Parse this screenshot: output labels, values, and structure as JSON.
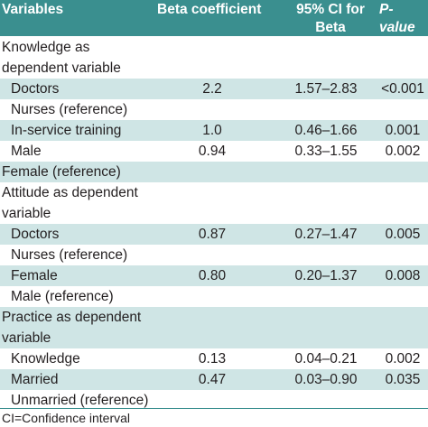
{
  "header": {
    "variables": "Variables",
    "beta": "Beta coefficient",
    "ci_line1": "95% CI for",
    "ci_line2": "Beta",
    "p": "P-value"
  },
  "rows": [
    {
      "label": "Knowledge as",
      "indent": 2,
      "beta": "",
      "ci": "",
      "p": "",
      "shade": false
    },
    {
      "label": "dependent variable",
      "indent": 2,
      "beta": "",
      "ci": "",
      "p": "",
      "shade": false
    },
    {
      "label": "Doctors",
      "indent": 12,
      "beta": "2.2",
      "ci": "1.57–2.83",
      "p": "<0.001",
      "shade": true
    },
    {
      "label": "Nurses (reference)",
      "indent": 12,
      "beta": "",
      "ci": "",
      "p": "",
      "shade": false
    },
    {
      "label": "In-service training",
      "indent": 12,
      "beta": "1.0",
      "ci": "0.46–1.66",
      "p": "0.001",
      "shade": true
    },
    {
      "label": "Male",
      "indent": 12,
      "beta": "0.94",
      "ci": "0.33–1.55",
      "p": "0.002",
      "shade": false
    },
    {
      "label": "Female (reference)",
      "indent": 2,
      "beta": "",
      "ci": "",
      "p": "",
      "shade": true
    },
    {
      "label": "Attitude as dependent",
      "indent": 2,
      "beta": "",
      "ci": "",
      "p": "",
      "shade": false
    },
    {
      "label": "variable",
      "indent": 2,
      "beta": "",
      "ci": "",
      "p": "",
      "shade": false
    },
    {
      "label": "Doctors",
      "indent": 12,
      "beta": "0.87",
      "ci": "0.27–1.47",
      "p": "0.005",
      "shade": true
    },
    {
      "label": "Nurses (reference)",
      "indent": 12,
      "beta": "",
      "ci": "",
      "p": "",
      "shade": false
    },
    {
      "label": "Female",
      "indent": 12,
      "beta": "0.80",
      "ci": "0.20–1.37",
      "p": "0.008",
      "shade": true
    },
    {
      "label": "Male (reference)",
      "indent": 12,
      "beta": "",
      "ci": "",
      "p": "",
      "shade": false
    },
    {
      "label": "Practice as dependent",
      "indent": 2,
      "beta": "",
      "ci": "",
      "p": "",
      "shade": true
    },
    {
      "label": "variable",
      "indent": 2,
      "beta": "",
      "ci": "",
      "p": "",
      "shade": true
    },
    {
      "label": "Knowledge",
      "indent": 12,
      "beta": "0.13",
      "ci": "0.04–0.21",
      "p": "0.002",
      "shade": false
    },
    {
      "label": "Married",
      "indent": 12,
      "beta": "0.47",
      "ci": "0.03–0.90",
      "p": "0.035",
      "shade": true
    },
    {
      "label": "Unmarried (reference)",
      "indent": 12,
      "beta": "",
      "ci": "",
      "p": "",
      "shade": false
    }
  ],
  "footnote": "CI=Confidence interval"
}
